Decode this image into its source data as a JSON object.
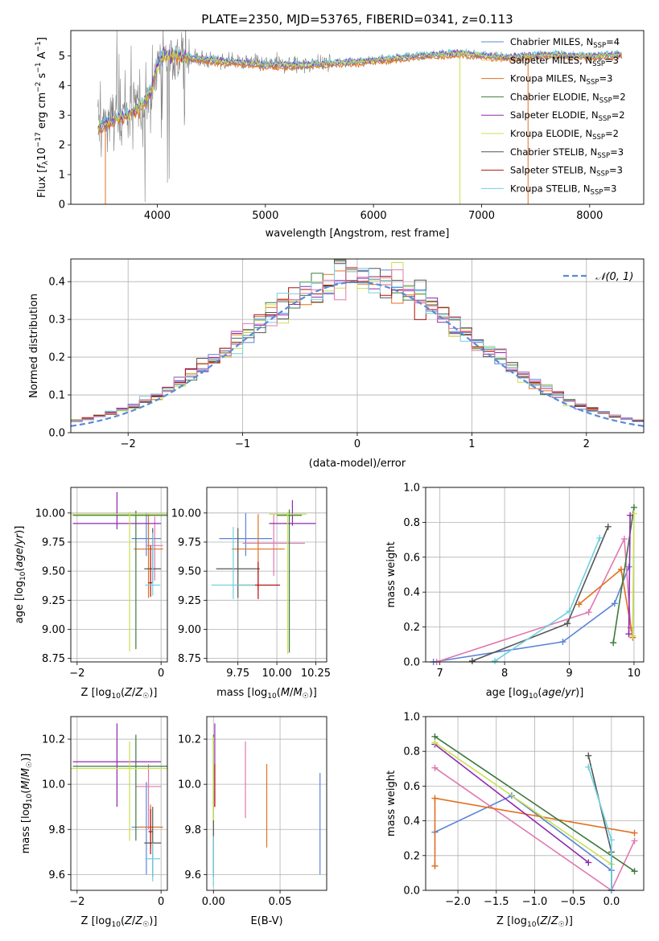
{
  "title": "PLATE=2350, MJD=53765, FIBERID=0341, z=0.113",
  "colors": {
    "chabrier_miles": "#5b84d6",
    "salpeter_miles": "#e9c46a",
    "kroupa_miles": "#e07020",
    "chabrier_elodie": "#3e7a3e",
    "salpeter_elodie": "#8e2ab0",
    "kroupa_elodie": "#c8e050",
    "chabrier_stelib": "#555555",
    "salpeter_stelib": "#b01010",
    "kroupa_stelib": "#70d0e0",
    "pink": "#e078b0",
    "gray_spectrum": "#808080",
    "grid": "#b0b0b0",
    "normal": "#5b8bd6"
  },
  "legend_spectrum": [
    {
      "name": "Chabrier MILES, N",
      "sub": "SSP",
      "suffix": "=4",
      "color": "#5b84d6"
    },
    {
      "name": "Salpeter MILES, N",
      "sub": "SSP",
      "suffix": "=3",
      "color": "#e9c46a"
    },
    {
      "name": "Kroupa MILES, N",
      "sub": "SSP",
      "suffix": "=3",
      "color": "#e07020"
    },
    {
      "name": "Chabrier ELODIE, N",
      "sub": "SSP",
      "suffix": "=2",
      "color": "#3e7a3e"
    },
    {
      "name": "Salpeter ELODIE, N",
      "sub": "SSP",
      "suffix": "=2",
      "color": "#8e2ab0"
    },
    {
      "name": "Kroupa ELODIE, N",
      "sub": "SSP",
      "suffix": "=2",
      "color": "#c8e050"
    },
    {
      "name": "Chabrier STELIB, N",
      "sub": "SSP",
      "suffix": "=3",
      "color": "#555555"
    },
    {
      "name": "Salpeter STELIB, N",
      "sub": "SSP",
      "suffix": "=3",
      "color": "#b01010"
    },
    {
      "name": "Kroupa STELIB, N",
      "sub": "SSP",
      "suffix": "=3",
      "color": "#70d0e0"
    }
  ],
  "chart_data": [
    {
      "type": "line",
      "panel": "spectrum",
      "xlabel": "wavelength [Angstrom, rest frame]",
      "ylabel": "Flux [f_λ 10^-17 erg cm^-2 s^-1 A^-1]",
      "xlim": [
        3200,
        8500
      ],
      "ylim": [
        0,
        5.85
      ],
      "xticks": [
        "4000",
        "5000",
        "6000",
        "7000",
        "8000"
      ],
      "yticks": [
        "0",
        "1",
        "2",
        "3",
        "4",
        "5"
      ],
      "continuum": {
        "x": [
          3450,
          3550,
          3650,
          3750,
          3850,
          3950,
          4000,
          4050,
          4200,
          4400,
          4700,
          5000,
          5300,
          5600,
          6000,
          6400,
          6800,
          7200,
          7600,
          8000,
          8300
        ],
        "y": [
          2.6,
          2.8,
          2.9,
          3.1,
          3.3,
          3.9,
          4.7,
          5.0,
          5.0,
          4.9,
          4.8,
          4.7,
          4.7,
          4.75,
          4.85,
          5.0,
          5.1,
          4.95,
          5.05,
          5.0,
          5.05
        ]
      }
    },
    {
      "type": "bar",
      "panel": "residual-histogram",
      "xlabel": "(data-model)/error",
      "ylabel": "Normed distribution",
      "xlim": [
        -2.5,
        2.5
      ],
      "ylim": [
        0,
        0.46
      ],
      "xticks": [
        "−2",
        "−1",
        "0",
        "1",
        "2"
      ],
      "yticks": [
        "0.0",
        "0.1",
        "0.2",
        "0.3",
        "0.4"
      ],
      "bin_width": 0.1,
      "reference_curve": "𝒩(0, 1)"
    },
    {
      "type": "scatter",
      "panel": "age-vs-metallicity",
      "xlabel": "Z [log10(Z/Z☉)]",
      "ylabel": "age [log10(age/yr)]",
      "xlim": [
        -2.15,
        0.15
      ],
      "ylim": [
        8.72,
        10.22
      ],
      "xticks": [
        "−2",
        "0"
      ],
      "yticks": [
        "8.75",
        "9.00",
        "9.25",
        "9.50",
        "9.75",
        "10.00"
      ],
      "points": [
        {
          "x": -0.35,
          "y": 9.78,
          "xerr": 0.35,
          "yerr_lo": 0.15,
          "yerr_hi": 0.22,
          "color": "#5b84d6"
        },
        {
          "x": -0.15,
          "y": 9.72,
          "xerr": 0.2,
          "yerr_lo": 0.3,
          "yerr_hi": 0.25,
          "color": "#e078b0"
        },
        {
          "x": -0.3,
          "y": 9.69,
          "xerr": 0.35,
          "yerr_lo": 0.42,
          "yerr_hi": 0.3,
          "color": "#e07020"
        },
        {
          "x": -0.6,
          "y": 9.98,
          "xerr": 1.5,
          "yerr_lo": 1.15,
          "yerr_hi": 0.04,
          "color": "#3e7a3e"
        },
        {
          "x": -1.05,
          "y": 9.91,
          "xerr": 1.05,
          "yerr_lo": 0.05,
          "yerr_hi": 0.27,
          "color": "#8e2ab0"
        },
        {
          "x": -0.75,
          "y": 9.99,
          "xerr": 1.5,
          "yerr_lo": 1.18,
          "yerr_hi": 0.02,
          "color": "#c8e050"
        },
        {
          "x": -0.2,
          "y": 9.52,
          "xerr": 0.2,
          "yerr_lo": 0.12,
          "yerr_hi": 0.35,
          "color": "#555555"
        },
        {
          "x": -0.25,
          "y": 9.4,
          "xerr": 0.05,
          "yerr_lo": 0.12,
          "yerr_hi": 0.32,
          "color": "#b01010"
        },
        {
          "x": -0.2,
          "y": 9.38,
          "xerr": 0.18,
          "yerr_lo": 0.09,
          "yerr_hi": 0.45,
          "color": "#70d0e0"
        }
      ]
    },
    {
      "type": "scatter",
      "panel": "age-vs-mass",
      "xlabel": "mass [log10(M/M☉)]",
      "xlim": [
        9.55,
        10.32
      ],
      "ylim": [
        8.72,
        10.22
      ],
      "xticks": [
        "9.75",
        "10.00",
        "10.25"
      ],
      "yticks": [
        "8.75",
        "9.00",
        "9.25",
        "9.50",
        "9.75",
        "10.00"
      ],
      "points": [
        {
          "x": 9.8,
          "y": 9.78,
          "xerr": 0.17,
          "yerr_lo": 0.15,
          "yerr_hi": 0.22,
          "color": "#5b84d6"
        },
        {
          "x": 9.98,
          "y": 9.74,
          "xerr": 0.2,
          "yerr_lo": 0.28,
          "yerr_hi": 0.25,
          "color": "#e078b0"
        },
        {
          "x": 9.88,
          "y": 9.69,
          "xerr": 0.17,
          "yerr_lo": 0.35,
          "yerr_hi": 0.3,
          "color": "#e07020"
        },
        {
          "x": 10.08,
          "y": 9.98,
          "xerr": 0.08,
          "yerr_lo": 1.18,
          "yerr_hi": 0.05,
          "color": "#3e7a3e"
        },
        {
          "x": 10.1,
          "y": 9.91,
          "xerr": 0.15,
          "yerr_lo": 0.02,
          "yerr_hi": 0.2,
          "color": "#8e2ab0"
        },
        {
          "x": 10.07,
          "y": 9.99,
          "xerr": 0.12,
          "yerr_lo": 1.2,
          "yerr_hi": 0.02,
          "color": "#c8e050"
        },
        {
          "x": 9.75,
          "y": 9.52,
          "xerr": 0.14,
          "yerr_lo": 0.25,
          "yerr_hi": 0.35,
          "color": "#555555"
        },
        {
          "x": 9.88,
          "y": 9.38,
          "xerr": 0.14,
          "yerr_lo": 0.12,
          "yerr_hi": 0.2,
          "color": "#b01010"
        },
        {
          "x": 9.72,
          "y": 9.38,
          "xerr": 0.14,
          "yerr_lo": 0.12,
          "yerr_hi": 0.5,
          "color": "#70d0e0"
        }
      ]
    },
    {
      "type": "line",
      "panel": "mass-weight-vs-age",
      "xlabel": "age [log10(age/yr)]",
      "ylabel": "mass weight",
      "xlim": [
        6.78,
        10.15
      ],
      "ylim": [
        0,
        1
      ],
      "xticks": [
        "7",
        "8",
        "9",
        "10"
      ],
      "yticks": [
        "0.0",
        "0.2",
        "0.4",
        "0.6",
        "0.8",
        "1.0"
      ],
      "series": [
        {
          "color": "#5b84d6",
          "x": [
            6.9,
            8.9,
            9.7,
            9.92
          ],
          "y": [
            0.0,
            0.115,
            0.335,
            0.545
          ]
        },
        {
          "color": "#e078b0",
          "x": [
            6.95,
            9.3,
            9.85,
            9.95
          ],
          "y": [
            0.0,
            0.285,
            0.705,
            0.195
          ]
        },
        {
          "color": "#e07020",
          "x": [
            9.15,
            9.8,
            9.98
          ],
          "y": [
            0.33,
            0.53,
            0.14
          ]
        },
        {
          "color": "#3e7a3e",
          "x": [
            9.68,
            10.0
          ],
          "y": [
            0.11,
            0.885
          ]
        },
        {
          "color": "#8e2ab0",
          "x": [
            9.92,
            9.94
          ],
          "y": [
            0.16,
            0.84
          ]
        },
        {
          "color": "#c8e050",
          "x": [
            9.98,
            10.0
          ],
          "y": [
            0.15,
            0.85
          ]
        },
        {
          "color": "#555555",
          "x": [
            7.5,
            8.97,
            9.6
          ],
          "y": [
            0.005,
            0.22,
            0.775
          ]
        },
        {
          "color": "#70d0e0",
          "x": [
            7.85,
            9.0,
            9.47
          ],
          "y": [
            0.005,
            0.29,
            0.71
          ]
        }
      ]
    },
    {
      "type": "scatter",
      "panel": "mass-vs-metallicity",
      "xlabel": "Z [log10(Z/Z☉)]",
      "ylabel": "mass [log10(M/M☉)]",
      "xlim": [
        -2.15,
        0.15
      ],
      "ylim": [
        9.53,
        10.3
      ],
      "xticks": [
        "−2",
        "0"
      ],
      "yticks": [
        "9.6",
        "9.8",
        "10.0",
        "10.2"
      ],
      "points": [
        {
          "x": -0.35,
          "y": 9.81,
          "xerr": 0.35,
          "yerr_lo": 0.21,
          "yerr_hi": 0.2,
          "color": "#5b84d6"
        },
        {
          "x": -0.3,
          "y": 9.99,
          "xerr": 0.3,
          "yerr_lo": 0.19,
          "yerr_hi": 0.1,
          "color": "#e078b0"
        },
        {
          "x": -0.25,
          "y": 9.81,
          "xerr": 0.3,
          "yerr_lo": 0.09,
          "yerr_hi": 0.1,
          "color": "#e07020"
        },
        {
          "x": -0.6,
          "y": 10.08,
          "xerr": 1.5,
          "yerr_lo": 0.33,
          "yerr_hi": 0.14,
          "color": "#3e7a3e"
        },
        {
          "x": -1.05,
          "y": 10.1,
          "xerr": 1.05,
          "yerr_lo": 0.2,
          "yerr_hi": 0.17,
          "color": "#8e2ab0"
        },
        {
          "x": -0.75,
          "y": 10.07,
          "xerr": 1.5,
          "yerr_lo": 0.32,
          "yerr_hi": 0.12,
          "color": "#c8e050"
        },
        {
          "x": -0.2,
          "y": 9.74,
          "xerr": 0.2,
          "yerr_lo": 0.15,
          "yerr_hi": 0.16,
          "color": "#555555"
        },
        {
          "x": -0.25,
          "y": 9.79,
          "xerr": 0.05,
          "yerr_lo": 0.1,
          "yerr_hi": 0.1,
          "color": "#b01010"
        },
        {
          "x": -0.2,
          "y": 9.67,
          "xerr": 0.18,
          "yerr_lo": 0.1,
          "yerr_hi": 0.07,
          "color": "#70d0e0"
        }
      ]
    },
    {
      "type": "scatter",
      "panel": "mass-vs-extinction",
      "xlabel": "E(B-V)",
      "xlim": [
        -0.005,
        0.085
      ],
      "ylim": [
        9.53,
        10.3
      ],
      "xticks": [
        "0.00",
        "0.05"
      ],
      "yticks": [
        "9.6",
        "9.8",
        "10.0",
        "10.2"
      ],
      "points": [
        {
          "x": 0.08,
          "y": 9.82,
          "yerr_lo": 0.22,
          "yerr_hi": 0.23,
          "color": "#5b84d6"
        },
        {
          "x": 0.024,
          "y": 10.02,
          "yerr_lo": 0.17,
          "yerr_hi": 0.17,
          "color": "#e078b0"
        },
        {
          "x": 0.04,
          "y": 9.9,
          "yerr_lo": 0.18,
          "yerr_hi": 0.19,
          "color": "#e07020"
        },
        {
          "x": 0.0,
          "y": 10.08,
          "yerr_lo": 0.24,
          "yerr_hi": 0.14,
          "color": "#3e7a3e"
        },
        {
          "x": 0.001,
          "y": 10.1,
          "yerr_lo": 0.2,
          "yerr_hi": 0.17,
          "color": "#8e2ab0"
        },
        {
          "x": 0.0,
          "y": 10.07,
          "yerr_lo": 0.3,
          "yerr_hi": 0.14,
          "color": "#c8e050"
        },
        {
          "x": 0.0,
          "y": 9.74,
          "yerr_lo": 0.15,
          "yerr_hi": 0.1,
          "color": "#555555"
        },
        {
          "x": 0.001,
          "y": 9.97,
          "yerr_lo": 0.07,
          "yerr_hi": 0.12,
          "color": "#b01010"
        },
        {
          "x": 0.0,
          "y": 9.67,
          "yerr_lo": 0.12,
          "yerr_hi": 0.1,
          "color": "#70d0e0"
        }
      ]
    },
    {
      "type": "line",
      "panel": "mass-weight-vs-metallicity",
      "xlabel": "Z [log10(Z/Z☉)]",
      "ylabel": "mass weight",
      "xlim": [
        -2.42,
        0.42
      ],
      "ylim": [
        0,
        1
      ],
      "xticks": [
        "−2.0",
        "−1.5",
        "−1.0",
        "−0.5",
        "0.0"
      ],
      "yticks": [
        "0.0",
        "0.2",
        "0.4",
        "0.6",
        "0.8",
        "1.0"
      ],
      "series": [
        {
          "color": "#5b84d6",
          "x": [
            -2.3,
            -1.3,
            0.0,
            0.0
          ],
          "y": [
            0.335,
            0.545,
            0.115,
            0.0
          ]
        },
        {
          "color": "#e078b0",
          "x": [
            -2.3,
            0.0,
            0.3
          ],
          "y": [
            0.705,
            0.0,
            0.285
          ]
        },
        {
          "color": "#e07020",
          "x": [
            -2.3,
            -2.3,
            0.3
          ],
          "y": [
            0.14,
            0.53,
            0.33
          ]
        },
        {
          "color": "#3e7a3e",
          "x": [
            -2.3,
            0.3
          ],
          "y": [
            0.885,
            0.11
          ]
        },
        {
          "color": "#8e2ab0",
          "x": [
            -2.3,
            -0.3
          ],
          "y": [
            0.84,
            0.16
          ]
        },
        {
          "color": "#c8e050",
          "x": [
            -2.3,
            0.0
          ],
          "y": [
            0.85,
            0.15
          ]
        },
        {
          "color": "#555555",
          "x": [
            -0.3,
            0.0,
            0.0
          ],
          "y": [
            0.775,
            0.22,
            0.0
          ]
        },
        {
          "color": "#70d0e0",
          "x": [
            -0.3,
            0.0,
            0.0
          ],
          "y": [
            0.71,
            0.29,
            0.0
          ]
        }
      ]
    }
  ]
}
